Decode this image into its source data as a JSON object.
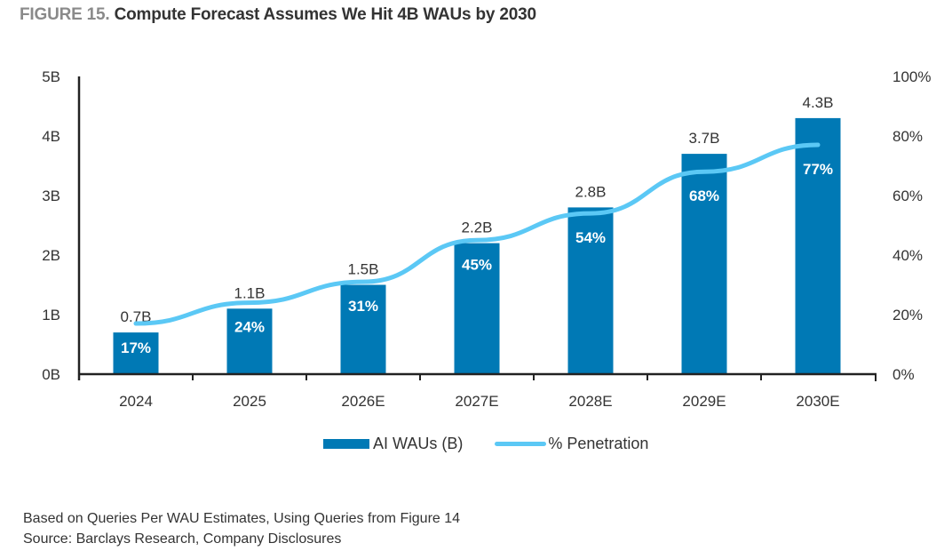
{
  "title": {
    "figure_label": "FIGURE 15.",
    "text": "Compute Forecast Assumes We Hit 4B WAUs by 2030"
  },
  "footer": {
    "note": "Based on Queries Per WAU Estimates, Using Queries from Figure 14",
    "source": "Source: Barclays Research, Company Disclosures"
  },
  "colors": {
    "bar": "#0079b5",
    "line": "#5bc8f5"
  },
  "chart_data": {
    "type": "bar",
    "title": "Compute Forecast Assumes We Hit 4B WAUs by 2030",
    "categories": [
      "2024",
      "2025",
      "2026E",
      "2027E",
      "2028E",
      "2029E",
      "2030E"
    ],
    "series": [
      {
        "name": "AI WAUs (B)",
        "type": "bar",
        "axis": "left",
        "values": [
          0.7,
          1.1,
          1.5,
          2.2,
          2.8,
          3.7,
          4.3
        ],
        "labels": [
          "0.7B",
          "1.1B",
          "1.5B",
          "2.2B",
          "2.8B",
          "3.7B",
          "4.3B"
        ]
      },
      {
        "name": "% Penetration",
        "type": "line",
        "axis": "right",
        "values": [
          17,
          24,
          31,
          45,
          54,
          68,
          77
        ],
        "labels": [
          "17%",
          "24%",
          "31%",
          "45%",
          "54%",
          "68%",
          "77%"
        ]
      }
    ],
    "y_left": {
      "range": [
        0,
        5
      ],
      "ticks": [
        "0B",
        "1B",
        "2B",
        "3B",
        "4B",
        "5B"
      ]
    },
    "y_right": {
      "range": [
        0,
        100
      ],
      "ticks": [
        "0%",
        "20%",
        "40%",
        "60%",
        "80%",
        "100%"
      ]
    },
    "xlabel": "",
    "ylabel": "",
    "grid": false,
    "legend": {
      "placement": "bottom-center",
      "entries": [
        "AI WAUs (B)",
        "% Penetration"
      ]
    }
  }
}
